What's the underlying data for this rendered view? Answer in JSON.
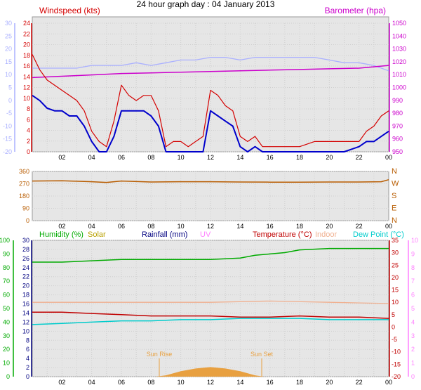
{
  "title": "24 hour graph day : 04 January 2013",
  "x_ticks": [
    "02",
    "04",
    "06",
    "08",
    "10",
    "12",
    "14",
    "16",
    "18",
    "20",
    "22",
    "00"
  ],
  "colors": {
    "wind": "#d40000",
    "gust_avg": "#0000cc",
    "wind_light": "#aab0ff",
    "baro": "#cc00cc",
    "direction": "#b85c00",
    "humidity": "#00aa00",
    "solar": "#b8a000",
    "rainfall": "#000080",
    "uv": "#ff80ff",
    "temperature": "#c00000",
    "indoor": "#f0b090",
    "dewpoint": "#00cccc",
    "sun": "#e8a040",
    "panel": "#e8e8e8"
  },
  "panels": {
    "wind": {
      "title_left": "Windspeed (kts)",
      "title_right": "Barometer (hpa)",
      "ticks_left": [
        "24",
        "22",
        "20",
        "18",
        "16",
        "14",
        "12",
        "10",
        "8",
        "6",
        "4",
        "2",
        "0"
      ],
      "ticks_far_left": [
        "30",
        "25",
        "20",
        "15",
        "10",
        "5",
        "0",
        "-5",
        "-10",
        "-15",
        "-20"
      ],
      "ticks_right": [
        "1050",
        "1040",
        "1030",
        "1020",
        "1010",
        "1000",
        "990",
        "980",
        "970",
        "960",
        "950"
      ]
    },
    "direction": {
      "ticks_left": [
        "360",
        "270",
        "180",
        "90",
        "0"
      ],
      "ticks_right": [
        "N",
        "W",
        "S",
        "E",
        "N"
      ]
    },
    "weather": {
      "legend": {
        "humidity": "Humidity (%)",
        "solar": "Solar",
        "rainfall": "Rainfall (mm)",
        "uv": "UV",
        "temperature": "Temperature (°C)",
        "indoor": "Indoor",
        "dewpoint": "Dew Point (°C)"
      },
      "ticks_humidity": [
        "100",
        "90",
        "80",
        "70",
        "60",
        "50",
        "40",
        "30",
        "20",
        "10",
        "0"
      ],
      "ticks_rain": [
        "30",
        "28",
        "26",
        "24",
        "22",
        "20",
        "18",
        "16",
        "14",
        "12",
        "10",
        "8",
        "6",
        "4",
        "2",
        "0"
      ],
      "ticks_temp": [
        "35",
        "30",
        "25",
        "20",
        "15",
        "10",
        "5",
        "0",
        "-5",
        "-10",
        "-15",
        "-20"
      ],
      "ticks_uv": [
        "10",
        "9",
        "8",
        "7",
        "6",
        "5",
        "4",
        "3",
        "2",
        "1",
        "0"
      ],
      "sunrise_label": "Sun Rise",
      "sunset_label": "Sun Set"
    }
  },
  "chart_data": [
    {
      "type": "line",
      "title": "24 hour graph day : 04 January 2013",
      "x_unit": "hour",
      "x_ticks": [
        "02",
        "04",
        "06",
        "08",
        "10",
        "12",
        "14",
        "16",
        "18",
        "20",
        "22",
        "00"
      ],
      "ylim_left": [
        0,
        25
      ],
      "ylim_right": [
        950,
        1050
      ],
      "ylim_far_left": [
        -20,
        30
      ],
      "series": [
        {
          "name": "Windspeed (kts)",
          "axis": "left",
          "data": [
            [
              0,
              19
            ],
            [
              0.5,
              16
            ],
            [
              1,
              14
            ],
            [
              1.5,
              13
            ],
            [
              2,
              12
            ],
            [
              2.5,
              11
            ],
            [
              3,
              10
            ],
            [
              3.5,
              8
            ],
            [
              4,
              4
            ],
            [
              4.5,
              2
            ],
            [
              5,
              1
            ],
            [
              5.5,
              6
            ],
            [
              6,
              13
            ],
            [
              6.5,
              11
            ],
            [
              7,
              10
            ],
            [
              7.5,
              11
            ],
            [
              8,
              11
            ],
            [
              8.5,
              8
            ],
            [
              9,
              1
            ],
            [
              9.5,
              2
            ],
            [
              10,
              2
            ],
            [
              10.5,
              1
            ],
            [
              11,
              2
            ],
            [
              11.5,
              3
            ],
            [
              12,
              12
            ],
            [
              12.5,
              11
            ],
            [
              13,
              9
            ],
            [
              13.5,
              8
            ],
            [
              14,
              3
            ],
            [
              14.5,
              2
            ],
            [
              15,
              3
            ],
            [
              15.5,
              1
            ],
            [
              16,
              1
            ],
            [
              17,
              1
            ],
            [
              18,
              1
            ],
            [
              19,
              2
            ],
            [
              20,
              2
            ],
            [
              21,
              2
            ],
            [
              22,
              2
            ],
            [
              22.5,
              4
            ],
            [
              23,
              5
            ],
            [
              23.5,
              7
            ],
            [
              24,
              8
            ]
          ]
        },
        {
          "name": "",
          "axis": "left",
          "data": [
            [
              0,
              11
            ],
            [
              0.5,
              10
            ],
            [
              1,
              8.5
            ],
            [
              1.5,
              8
            ],
            [
              2,
              8
            ],
            [
              2.5,
              7
            ],
            [
              3,
              7
            ],
            [
              3.5,
              5
            ],
            [
              4,
              2
            ],
            [
              4.5,
              0
            ],
            [
              5,
              0
            ],
            [
              5.5,
              3
            ],
            [
              6,
              8
            ],
            [
              6.5,
              8
            ],
            [
              7,
              8
            ],
            [
              7.5,
              8
            ],
            [
              8,
              7
            ],
            [
              8.5,
              5
            ],
            [
              9,
              0
            ],
            [
              9.5,
              0
            ],
            [
              10,
              0
            ],
            [
              10.5,
              0
            ],
            [
              11,
              0
            ],
            [
              11.5,
              0
            ],
            [
              12,
              8
            ],
            [
              12.5,
              7
            ],
            [
              13,
              6
            ],
            [
              13.5,
              5
            ],
            [
              14,
              1
            ],
            [
              14.5,
              0
            ],
            [
              15,
              1
            ],
            [
              15.5,
              0
            ],
            [
              16,
              0
            ],
            [
              17,
              0
            ],
            [
              18,
              0
            ],
            [
              19,
              0
            ],
            [
              20,
              0
            ],
            [
              21,
              0
            ],
            [
              22,
              1
            ],
            [
              22.5,
              2
            ],
            [
              23,
              2
            ],
            [
              23.5,
              3
            ],
            [
              24,
              4
            ]
          ]
        },
        {
          "name": "Barometer (hpa)",
          "axis": "right",
          "data": [
            [
              0,
              1005
            ],
            [
              2,
              1006
            ],
            [
              4,
              1007
            ],
            [
              6,
              1008
            ],
            [
              8,
              1008.5
            ],
            [
              10,
              1009
            ],
            [
              12,
              1009.5
            ],
            [
              14,
              1010
            ],
            [
              16,
              1010.5
            ],
            [
              18,
              1011
            ],
            [
              20,
              1011.5
            ],
            [
              22,
              1012
            ],
            [
              24,
              1014
            ]
          ]
        },
        {
          "name": "",
          "axis": "far_left",
          "data": [
            [
              0,
              11
            ],
            [
              1,
              11
            ],
            [
              2,
              11
            ],
            [
              3,
              11
            ],
            [
              4,
              12
            ],
            [
              5,
              12
            ],
            [
              6,
              12
            ],
            [
              7,
              13
            ],
            [
              8,
              12
            ],
            [
              9,
              13
            ],
            [
              10,
              14
            ],
            [
              11,
              14
            ],
            [
              12,
              15
            ],
            [
              13,
              15
            ],
            [
              14,
              14
            ],
            [
              15,
              15
            ],
            [
              16,
              15
            ],
            [
              17,
              15
            ],
            [
              18,
              15
            ],
            [
              19,
              15
            ],
            [
              20,
              14
            ],
            [
              21,
              13
            ],
            [
              22,
              13
            ],
            [
              23,
              12
            ],
            [
              24,
              10
            ]
          ]
        }
      ]
    },
    {
      "type": "line",
      "title": "",
      "ylim": [
        0,
        360
      ],
      "series": [
        {
          "name": "",
          "data": [
            [
              0,
              290
            ],
            [
              2,
              292
            ],
            [
              4,
              285
            ],
            [
              5,
              280
            ],
            [
              6,
              290
            ],
            [
              8,
              283
            ],
            [
              10,
              285
            ],
            [
              12,
              285
            ],
            [
              14,
              283
            ],
            [
              16,
              282
            ],
            [
              18,
              282
            ],
            [
              20,
              283
            ],
            [
              22,
              283
            ],
            [
              23.5,
              285
            ],
            [
              24,
              300
            ]
          ]
        }
      ]
    },
    {
      "type": "line",
      "title": "",
      "ylim_humidity": [
        0,
        100
      ],
      "ylim_temp": [
        -20,
        35
      ],
      "ylim_uv": [
        0,
        10
      ],
      "series": [
        {
          "name": "Humidity (%)",
          "axis": "humidity",
          "data": [
            [
              0,
              84
            ],
            [
              2,
              84
            ],
            [
              4,
              85
            ],
            [
              6,
              86
            ],
            [
              8,
              86
            ],
            [
              10,
              86
            ],
            [
              12,
              86
            ],
            [
              14,
              87
            ],
            [
              15,
              89
            ],
            [
              16,
              90
            ],
            [
              17,
              91
            ],
            [
              18,
              93
            ],
            [
              20,
              94
            ],
            [
              22,
              94
            ],
            [
              24,
              94
            ]
          ]
        },
        {
          "name": "Temperature (°C)",
          "axis": "temp",
          "data": [
            [
              0,
              6
            ],
            [
              2,
              6
            ],
            [
              4,
              5.5
            ],
            [
              6,
              5
            ],
            [
              8,
              4.5
            ],
            [
              10,
              4.5
            ],
            [
              12,
              4.5
            ],
            [
              14,
              4
            ],
            [
              16,
              4
            ],
            [
              18,
              4.5
            ],
            [
              20,
              4
            ],
            [
              22,
              4
            ],
            [
              24,
              3.5
            ]
          ]
        },
        {
          "name": "Indoor",
          "axis": "temp",
          "data": [
            [
              0,
              10
            ],
            [
              4,
              10
            ],
            [
              8,
              10
            ],
            [
              12,
              10
            ],
            [
              16,
              10.5
            ],
            [
              20,
              10
            ],
            [
              24,
              9.5
            ]
          ]
        },
        {
          "name": "Dew Point (°C)",
          "axis": "temp",
          "data": [
            [
              0,
              1
            ],
            [
              2,
              1.5
            ],
            [
              4,
              2
            ],
            [
              6,
              2.5
            ],
            [
              8,
              2.5
            ],
            [
              10,
              3
            ],
            [
              12,
              3
            ],
            [
              14,
              3.5
            ],
            [
              16,
              3.5
            ],
            [
              18,
              3.5
            ],
            [
              20,
              3
            ],
            [
              22,
              3
            ],
            [
              24,
              3
            ]
          ]
        },
        {
          "name": "Solar",
          "axis": "humidity",
          "data": [
            [
              8.3,
              0
            ],
            [
              9,
              1
            ],
            [
              10,
              4
            ],
            [
              11,
              6
            ],
            [
              12,
              7
            ],
            [
              13,
              6
            ],
            [
              14,
              4
            ],
            [
              15,
              1
            ],
            [
              15.6,
              0
            ]
          ]
        }
      ]
    }
  ]
}
